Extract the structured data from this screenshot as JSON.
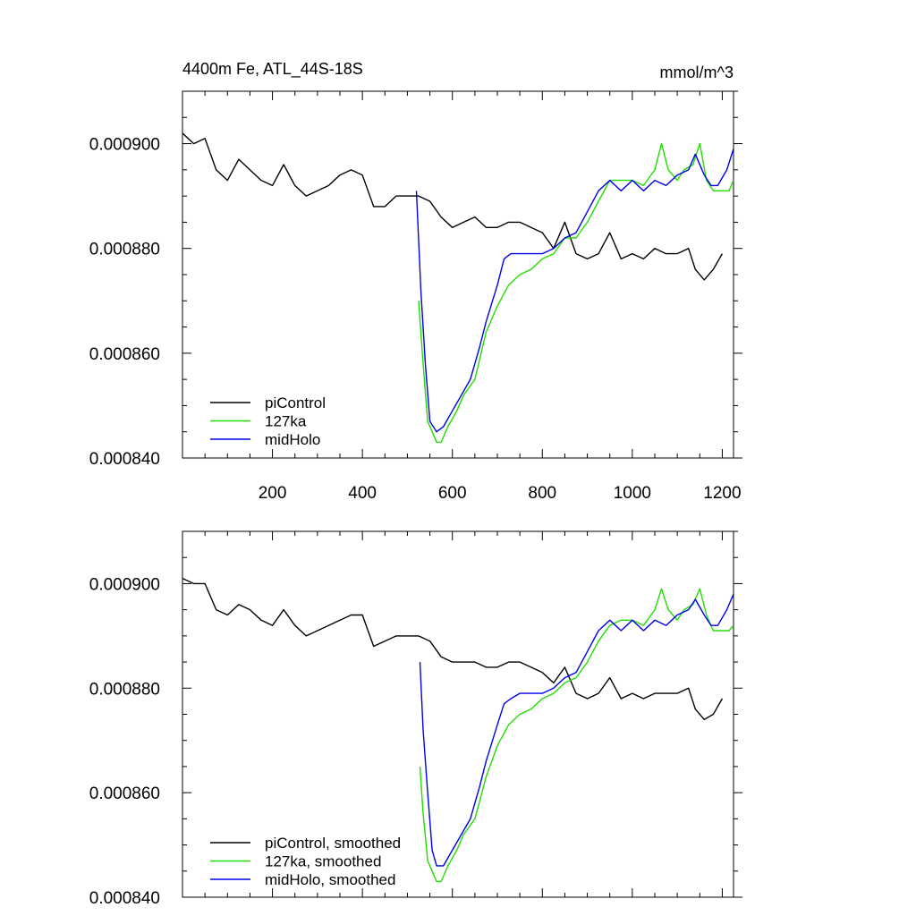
{
  "chart_data": [
    {
      "type": "line",
      "title": "4400m Fe, ATL_44S-18S",
      "units": "mmol/m^3",
      "xlabel": "",
      "ylabel": "",
      "xlim": [
        0,
        1225
      ],
      "ylim": [
        0.00084,
        0.00091
      ],
      "x_ticks": [
        200,
        400,
        600,
        800,
        1000,
        1200
      ],
      "x_tick_labels": [
        "200",
        "400",
        "600",
        "800",
        "1000",
        "1200"
      ],
      "y_ticks": [
        0.00084,
        0.00086,
        0.00088,
        0.0009
      ],
      "y_tick_labels": [
        "0.000840",
        "0.000860",
        "0.000880",
        "0.000900"
      ],
      "legend_position": "bottom-left",
      "series": [
        {
          "name": "piControl",
          "color": "#000000",
          "x": [
            0,
            25,
            50,
            75,
            100,
            125,
            150,
            175,
            200,
            225,
            250,
            275,
            300,
            325,
            350,
            375,
            400,
            425,
            450,
            475,
            500,
            525,
            550,
            575,
            600,
            625,
            650,
            675,
            700,
            725,
            750,
            775,
            800,
            825,
            850,
            875,
            900,
            925,
            950,
            975,
            1000,
            1025,
            1050,
            1075,
            1100,
            1125,
            1140,
            1160,
            1180,
            1200
          ],
          "y": [
            0.000902,
            0.0009,
            0.000901,
            0.000895,
            0.000893,
            0.000897,
            0.000895,
            0.000893,
            0.000892,
            0.000896,
            0.000892,
            0.00089,
            0.000891,
            0.000892,
            0.000894,
            0.000895,
            0.000894,
            0.000888,
            0.000888,
            0.00089,
            0.00089,
            0.00089,
            0.000889,
            0.000886,
            0.000884,
            0.000885,
            0.000886,
            0.000884,
            0.000884,
            0.000885,
            0.000885,
            0.000884,
            0.000883,
            0.00088,
            0.000885,
            0.000879,
            0.000878,
            0.000879,
            0.000883,
            0.000878,
            0.000879,
            0.000878,
            0.00088,
            0.000879,
            0.000879,
            0.00088,
            0.000876,
            0.000874,
            0.000876,
            0.000879
          ]
        },
        {
          "name": "127ka",
          "color": "#22dd00",
          "x": [
            525,
            535,
            545,
            555,
            565,
            575,
            590,
            610,
            625,
            650,
            675,
            700,
            725,
            750,
            775,
            800,
            825,
            850,
            875,
            900,
            925,
            950,
            975,
            1000,
            1025,
            1050,
            1065,
            1080,
            1100,
            1115,
            1135,
            1150,
            1165,
            1180,
            1200,
            1215,
            1225
          ],
          "y": [
            0.00087,
            0.000858,
            0.000847,
            0.000845,
            0.000843,
            0.000843,
            0.000846,
            0.000849,
            0.000852,
            0.000855,
            0.000864,
            0.000869,
            0.000873,
            0.000875,
            0.000876,
            0.000878,
            0.000879,
            0.000882,
            0.000882,
            0.000885,
            0.000889,
            0.000893,
            0.000893,
            0.000893,
            0.000892,
            0.000895,
            0.0009,
            0.000895,
            0.000893,
            0.000895,
            0.000896,
            0.0009,
            0.000893,
            0.000891,
            0.000891,
            0.000891,
            0.000893
          ]
        },
        {
          "name": "midHolo",
          "color": "#0000ee",
          "x": [
            520,
            530,
            540,
            550,
            565,
            580,
            600,
            620,
            640,
            660,
            675,
            700,
            715,
            730,
            750,
            775,
            800,
            825,
            850,
            875,
            900,
            925,
            950,
            975,
            1000,
            1025,
            1050,
            1075,
            1100,
            1125,
            1140,
            1160,
            1175,
            1190,
            1210,
            1225
          ],
          "y": [
            0.000891,
            0.000872,
            0.000858,
            0.000847,
            0.000845,
            0.000846,
            0.000849,
            0.000852,
            0.000855,
            0.000861,
            0.000866,
            0.000873,
            0.000878,
            0.000879,
            0.000879,
            0.000879,
            0.000879,
            0.00088,
            0.000882,
            0.000883,
            0.000887,
            0.000891,
            0.000893,
            0.000891,
            0.000893,
            0.000891,
            0.000893,
            0.000892,
            0.000894,
            0.000895,
            0.000898,
            0.000894,
            0.000892,
            0.000892,
            0.000895,
            0.000899
          ]
        }
      ]
    },
    {
      "type": "line",
      "title": "",
      "units": "",
      "xlabel": "",
      "ylabel": "",
      "xlim": [
        0,
        1225
      ],
      "ylim": [
        0.00084,
        0.00091
      ],
      "x_ticks": [
        200,
        400,
        600,
        800,
        1000,
        1200
      ],
      "x_tick_labels": [],
      "y_ticks": [
        0.00084,
        0.00086,
        0.00088,
        0.0009
      ],
      "y_tick_labels": [
        "0.000840",
        "0.000860",
        "0.000880",
        "0.000900"
      ],
      "legend_position": "bottom-left",
      "series": [
        {
          "name": "piControl, smoothed",
          "color": "#000000",
          "x": [
            0,
            25,
            50,
            75,
            100,
            125,
            150,
            175,
            200,
            225,
            250,
            275,
            300,
            325,
            350,
            375,
            400,
            425,
            450,
            475,
            500,
            525,
            550,
            575,
            600,
            625,
            650,
            675,
            700,
            725,
            750,
            775,
            800,
            825,
            850,
            875,
            900,
            925,
            950,
            975,
            1000,
            1025,
            1050,
            1075,
            1100,
            1125,
            1140,
            1160,
            1180,
            1200
          ],
          "y": [
            0.000901,
            0.0009,
            0.0009,
            0.000895,
            0.000894,
            0.000896,
            0.000895,
            0.000893,
            0.000892,
            0.000895,
            0.000892,
            0.00089,
            0.000891,
            0.000892,
            0.000893,
            0.000894,
            0.000894,
            0.000888,
            0.000889,
            0.00089,
            0.00089,
            0.00089,
            0.000889,
            0.000886,
            0.000885,
            0.000885,
            0.000885,
            0.000884,
            0.000884,
            0.000885,
            0.000885,
            0.000884,
            0.000883,
            0.000881,
            0.000884,
            0.000879,
            0.000878,
            0.000879,
            0.000882,
            0.000878,
            0.000879,
            0.000878,
            0.000879,
            0.000879,
            0.000879,
            0.00088,
            0.000876,
            0.000874,
            0.000875,
            0.000878
          ]
        },
        {
          "name": "127ka, smoothed",
          "color": "#22dd00",
          "x": [
            528,
            535,
            545,
            555,
            565,
            575,
            590,
            610,
            625,
            650,
            675,
            700,
            725,
            750,
            775,
            800,
            825,
            850,
            875,
            900,
            925,
            950,
            975,
            1000,
            1025,
            1050,
            1065,
            1080,
            1100,
            1115,
            1135,
            1150,
            1165,
            1180,
            1200,
            1215,
            1225
          ],
          "y": [
            0.000865,
            0.000856,
            0.000847,
            0.000845,
            0.000843,
            0.000843,
            0.000846,
            0.000849,
            0.000852,
            0.000855,
            0.000863,
            0.000869,
            0.000873,
            0.000875,
            0.000876,
            0.000878,
            0.000879,
            0.000881,
            0.000882,
            0.000885,
            0.000889,
            0.000892,
            0.000893,
            0.000893,
            0.000892,
            0.000895,
            0.000899,
            0.000895,
            0.000893,
            0.000895,
            0.000896,
            0.000899,
            0.000894,
            0.000891,
            0.000891,
            0.000891,
            0.000892
          ]
        },
        {
          "name": "midHolo, smoothed",
          "color": "#0000ee",
          "x": [
            528,
            535,
            545,
            555,
            565,
            580,
            600,
            620,
            640,
            660,
            675,
            700,
            715,
            730,
            750,
            775,
            800,
            825,
            850,
            875,
            900,
            925,
            950,
            975,
            1000,
            1025,
            1050,
            1075,
            1100,
            1125,
            1140,
            1160,
            1175,
            1190,
            1210,
            1225
          ],
          "y": [
            0.000885,
            0.000872,
            0.00086,
            0.000849,
            0.000846,
            0.000846,
            0.000849,
            0.000852,
            0.000855,
            0.000861,
            0.000866,
            0.000873,
            0.000877,
            0.000878,
            0.000879,
            0.000879,
            0.000879,
            0.00088,
            0.000882,
            0.000883,
            0.000887,
            0.000891,
            0.000893,
            0.000891,
            0.000893,
            0.000891,
            0.000893,
            0.000892,
            0.000894,
            0.000895,
            0.000897,
            0.000894,
            0.000892,
            0.000892,
            0.000895,
            0.000898
          ]
        }
      ]
    }
  ]
}
